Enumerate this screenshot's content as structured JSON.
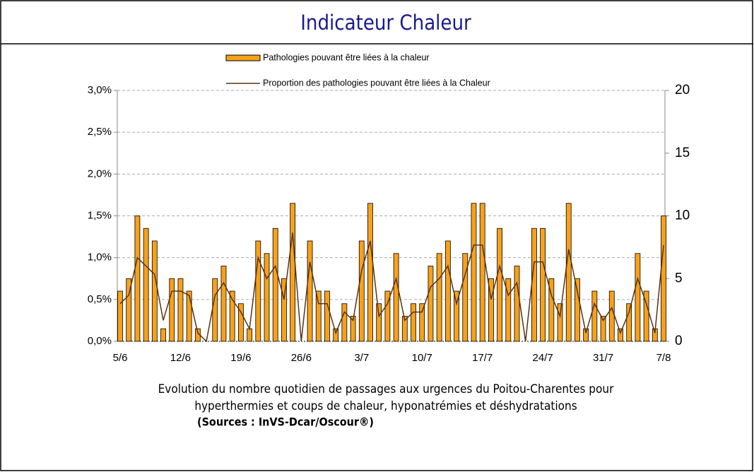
{
  "chart_data": {
    "type": "bar_line",
    "title": "Indicateur Chaleur",
    "caption": [
      "Evolution du nombre quotidien de passages aux urgences du Poitou-Charentes pour",
      "hyperthermies et coups de chaleur, hyponatrémies et déshydratations"
    ],
    "source": "(Sources : InVS-Dcar/Oscour®)",
    "categories": [
      "5/6",
      null,
      null,
      null,
      null,
      null,
      null,
      "12/6",
      null,
      null,
      null,
      null,
      null,
      null,
      "19/6",
      null,
      null,
      null,
      null,
      null,
      null,
      "26/6",
      null,
      null,
      null,
      null,
      null,
      null,
      "3/7",
      null,
      null,
      null,
      null,
      null,
      null,
      "10/7",
      null,
      null,
      null,
      null,
      null,
      null,
      "17/7",
      null,
      null,
      null,
      null,
      null,
      null,
      "24/7",
      null,
      null,
      null,
      null,
      null,
      null,
      "31/7",
      null,
      null,
      null,
      null,
      null,
      null,
      "7/8"
    ],
    "series": [
      {
        "name": "Pathologies pouvant être liées à la chaleur",
        "type": "bar",
        "axis": "y2",
        "color": "#f7a11a",
        "values": [
          4,
          5,
          10,
          9,
          8,
          1,
          5,
          5,
          4,
          1,
          0,
          5,
          6,
          4,
          3,
          1,
          8,
          7,
          9,
          5,
          11,
          0,
          8,
          4,
          4,
          1,
          3,
          2,
          8,
          11,
          3,
          4,
          7,
          2,
          3,
          3,
          6,
          7,
          8,
          4,
          7,
          11,
          11,
          5,
          9,
          5,
          6,
          0,
          9,
          9,
          5,
          3,
          11,
          5,
          1,
          4,
          2,
          4,
          1,
          3,
          7,
          4,
          1,
          10
        ]
      },
      {
        "name": "Proportion des pathologies pouvant être liées à la Chaleur",
        "type": "line",
        "axis": "y",
        "color": "#5a3214",
        "values": [
          0.45,
          0.55,
          1.0,
          0.9,
          0.8,
          0.25,
          0.6,
          0.6,
          0.55,
          0.1,
          0,
          0.55,
          0.7,
          0.5,
          0.35,
          0.15,
          1.0,
          0.75,
          0.9,
          0.5,
          1.3,
          0,
          0.95,
          0.45,
          0.45,
          0.1,
          0.35,
          0.25,
          0.85,
          1.2,
          0.3,
          0.45,
          0.75,
          0.25,
          0.35,
          0.35,
          0.65,
          0.75,
          0.9,
          0.45,
          0.8,
          1.15,
          1.15,
          0.5,
          0.9,
          0.55,
          0.7,
          0,
          0.95,
          0.95,
          0.55,
          0.3,
          1.1,
          0.6,
          0.1,
          0.45,
          0.25,
          0.4,
          0.1,
          0.35,
          0.75,
          0.45,
          0.1,
          1.15
        ]
      }
    ],
    "ylim": [
      0,
      3
    ],
    "yticks": [
      {
        "value": 0,
        "label": "0,0%"
      },
      {
        "value": 0.5,
        "label": "0,5%"
      },
      {
        "value": 1,
        "label": "1,0%"
      },
      {
        "value": 1.5,
        "label": "1,5%"
      },
      {
        "value": 2,
        "label": "2,0%"
      },
      {
        "value": 2.5,
        "label": "2,5%"
      },
      {
        "value": 3,
        "label": "3,0%"
      }
    ],
    "y2lim": [
      0,
      20
    ],
    "y2ticks": [
      0,
      5,
      10,
      15,
      20
    ],
    "grid": true
  }
}
